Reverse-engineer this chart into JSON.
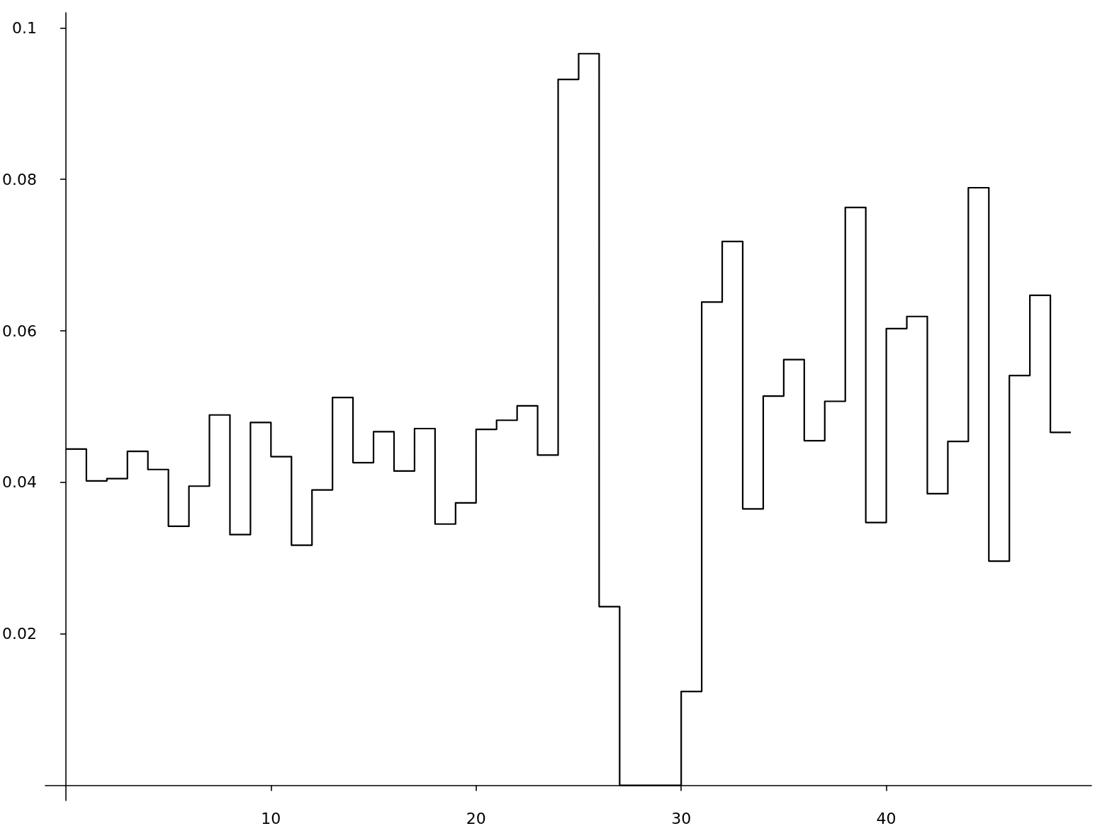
{
  "chart_data": {
    "type": "histogram",
    "bins": [
      0,
      1,
      2,
      3,
      4,
      5,
      6,
      7,
      8,
      9,
      10,
      11,
      12,
      13,
      14,
      15,
      16,
      17,
      18,
      19,
      20,
      21,
      22,
      23,
      24,
      25,
      26,
      27,
      28,
      29,
      30,
      31,
      32,
      33,
      34,
      35,
      36,
      37,
      38,
      39,
      40,
      41,
      42,
      43,
      44,
      45,
      46,
      47,
      48,
      49
    ],
    "series": [
      {
        "color": "#000000",
        "values": [
          0.0444,
          0.0402,
          0.0405,
          0.0441,
          0.0417,
          0.0342,
          0.0395,
          0.0489,
          0.0331,
          0.0479,
          0.0434,
          0.0317,
          0.039,
          0.0512,
          0.0426,
          0.0467,
          0.0415,
          0.0471,
          0.0345,
          0.0373,
          0.047,
          0.0482,
          0.0501,
          0.0436,
          0.0932,
          0.0966,
          0.0236,
          0,
          0,
          0,
          0.0124,
          0.0638,
          0.0718,
          0.0365,
          0.0514,
          0.0562,
          0.0455,
          0.0507,
          0.0763,
          0.0347,
          0.0603,
          0.0619,
          0.0385,
          0.0454,
          0.0789,
          0.0296,
          0.0541,
          0.0647,
          0.0466
        ]
      }
    ],
    "xlim": [
      -1,
      50
    ],
    "xticks": [
      10,
      20,
      30,
      40
    ],
    "ylim": [
      -0.002,
      0.102
    ],
    "yticks": [
      0.02,
      0.04,
      0.06,
      0.08,
      0.1
    ],
    "grid": false,
    "marker": "none",
    "line_style": "solid"
  }
}
